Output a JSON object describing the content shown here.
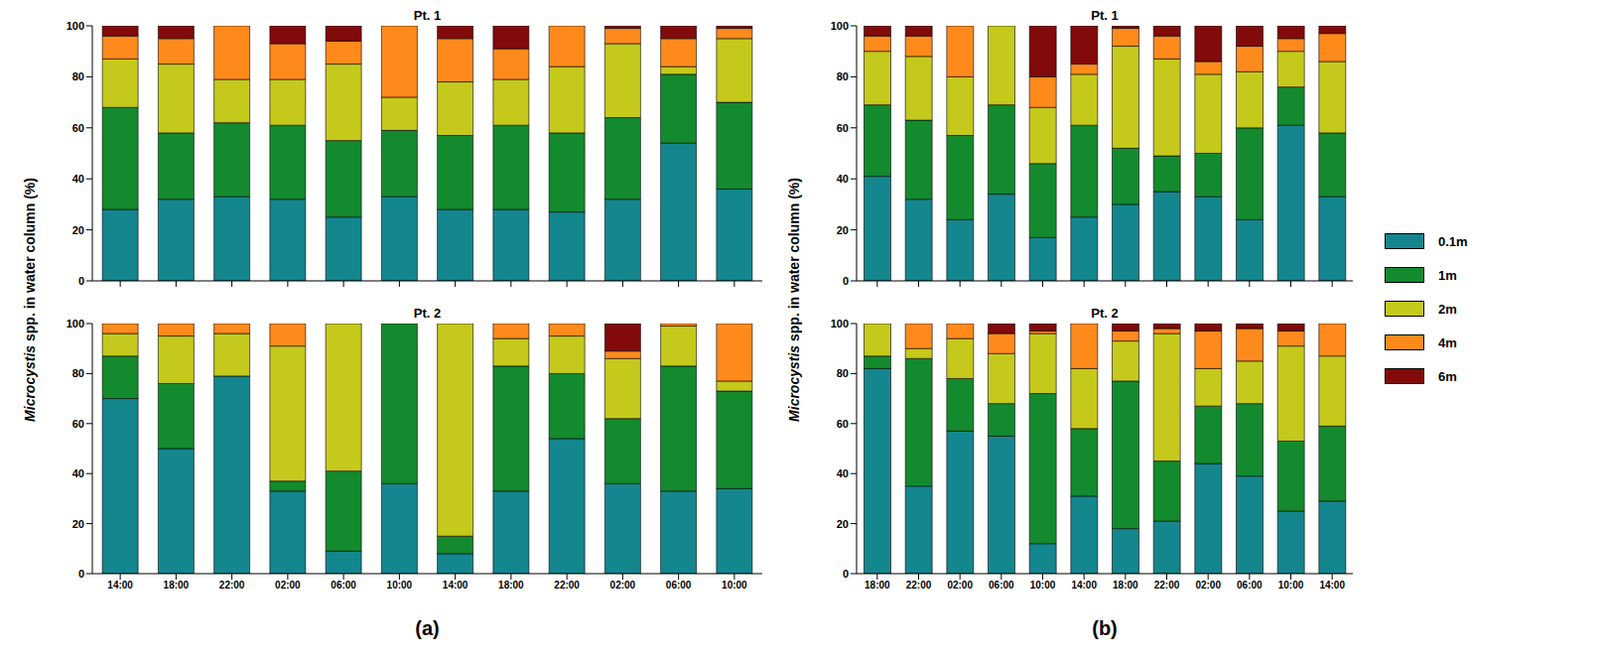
{
  "chart_data": [
    {
      "type": "bar",
      "title": "Pt. 1",
      "ylabel": "Microcystis spp. in water column (%)",
      "stacked": true,
      "tick_labels": "y",
      "categories": [
        "14:00",
        "18:00",
        "22:00",
        "02:00",
        "06:00",
        "10:00",
        "14:00",
        "18:00",
        "22:00",
        "02:00",
        "06:00",
        "10:00"
      ],
      "ylim": [
        0,
        100
      ],
      "yticks": [
        0,
        20,
        40,
        60,
        80,
        100
      ],
      "series": [
        {
          "name": "0.1m",
          "color": "#14868e",
          "values": [
            28,
            32,
            33,
            32,
            25,
            33,
            28,
            28,
            27,
            32,
            54,
            36
          ]
        },
        {
          "name": "1m",
          "color": "#138a2e",
          "values": [
            40,
            26,
            29,
            29,
            30,
            26,
            29,
            33,
            31,
            32,
            27,
            34
          ]
        },
        {
          "name": "2m",
          "color": "#c5c91c",
          "values": [
            19,
            27,
            17,
            18,
            30,
            13,
            21,
            18,
            26,
            29,
            3,
            25
          ]
        },
        {
          "name": "4m",
          "color": "#ff8a1c",
          "values": [
            9,
            10,
            21,
            14,
            9,
            28,
            17,
            12,
            16,
            6,
            11,
            4
          ]
        },
        {
          "name": "6m",
          "color": "#820a0a",
          "values": [
            4,
            5,
            0,
            7,
            6,
            0,
            5,
            9,
            0,
            1,
            5,
            1
          ]
        }
      ]
    },
    {
      "type": "bar",
      "title": "Pt. 2",
      "annotation": "(a)",
      "stacked": true,
      "categories": [
        "14:00",
        "18:00",
        "22:00",
        "02:00",
        "06:00",
        "10:00",
        "14:00",
        "18:00",
        "22:00",
        "02:00",
        "06:00",
        "10:00"
      ],
      "ylim": [
        0,
        100
      ],
      "yticks": [
        0,
        20,
        40,
        60,
        80,
        100
      ],
      "series": [
        {
          "name": "0.1m",
          "color": "#14868e",
          "values": [
            70,
            50,
            79,
            33,
            9,
            36,
            8,
            33,
            54,
            36,
            33,
            34
          ]
        },
        {
          "name": "1m",
          "color": "#138a2e",
          "values": [
            17,
            26,
            0,
            4,
            32,
            64,
            7,
            50,
            26,
            26,
            50,
            39
          ]
        },
        {
          "name": "2m",
          "color": "#c5c91c",
          "values": [
            9,
            19,
            17,
            54,
            59,
            0,
            85,
            11,
            15,
            24,
            16,
            4
          ]
        },
        {
          "name": "4m",
          "color": "#ff8a1c",
          "values": [
            4,
            5,
            4,
            9,
            0,
            0,
            0,
            6,
            5,
            3,
            1,
            23
          ]
        },
        {
          "name": "6m",
          "color": "#820a0a",
          "values": [
            0,
            0,
            0,
            0,
            0,
            0,
            0,
            0,
            0,
            11,
            0,
            0
          ]
        }
      ]
    },
    {
      "type": "bar",
      "title": "Pt. 1",
      "ylabel": "Microcystis spp. in water column (%)",
      "stacked": true,
      "tick_labels": "y",
      "legend": "right",
      "categories": [
        "18:00",
        "22:00",
        "02:00",
        "06:00",
        "10:00",
        "14:00",
        "18:00",
        "22:00",
        "02:00",
        "06:00",
        "10:00",
        "14:00"
      ],
      "ylim": [
        0,
        100
      ],
      "yticks": [
        0,
        20,
        40,
        60,
        80,
        100
      ],
      "series": [
        {
          "name": "0.1m",
          "color": "#14868e",
          "values": [
            41,
            32,
            24,
            34,
            17,
            25,
            30,
            35,
            33,
            24,
            61,
            33
          ]
        },
        {
          "name": "1m",
          "color": "#138a2e",
          "values": [
            28,
            31,
            33,
            35,
            29,
            36,
            22,
            14,
            17,
            36,
            15,
            25
          ]
        },
        {
          "name": "2m",
          "color": "#c5c91c",
          "values": [
            21,
            25,
            23,
            31,
            22,
            20,
            40,
            38,
            31,
            22,
            14,
            28
          ]
        },
        {
          "name": "4m",
          "color": "#ff8a1c",
          "values": [
            6,
            8,
            20,
            0,
            12,
            4,
            7,
            9,
            5,
            10,
            5,
            11
          ]
        },
        {
          "name": "6m",
          "color": "#820a0a",
          "values": [
            4,
            4,
            0,
            0,
            20,
            15,
            1,
            4,
            14,
            8,
            5,
            3
          ]
        }
      ]
    },
    {
      "type": "bar",
      "title": "Pt. 2",
      "annotation": "(b)",
      "stacked": true,
      "categories": [
        "18:00",
        "22:00",
        "02:00",
        "06:00",
        "10:00",
        "14:00",
        "18:00",
        "22:00",
        "02:00",
        "06:00",
        "10:00",
        "14:00"
      ],
      "ylim": [
        0,
        100
      ],
      "yticks": [
        0,
        20,
        40,
        60,
        80,
        100
      ],
      "series": [
        {
          "name": "0.1m",
          "color": "#14868e",
          "values": [
            82,
            35,
            57,
            55,
            12,
            31,
            18,
            21,
            44,
            39,
            25,
            29
          ]
        },
        {
          "name": "1m",
          "color": "#138a2e",
          "values": [
            5,
            51,
            21,
            13,
            60,
            27,
            59,
            24,
            23,
            29,
            28,
            30
          ]
        },
        {
          "name": "2m",
          "color": "#c5c91c",
          "values": [
            13,
            4,
            16,
            20,
            24,
            24,
            16,
            51,
            15,
            17,
            38,
            28
          ]
        },
        {
          "name": "4m",
          "color": "#ff8a1c",
          "values": [
            0,
            10,
            6,
            8,
            1,
            18,
            4,
            2,
            15,
            13,
            6,
            13
          ]
        },
        {
          "name": "6m",
          "color": "#820a0a",
          "values": [
            0,
            0,
            0,
            4,
            3,
            0,
            3,
            2,
            3,
            2,
            3,
            0
          ]
        }
      ]
    }
  ]
}
